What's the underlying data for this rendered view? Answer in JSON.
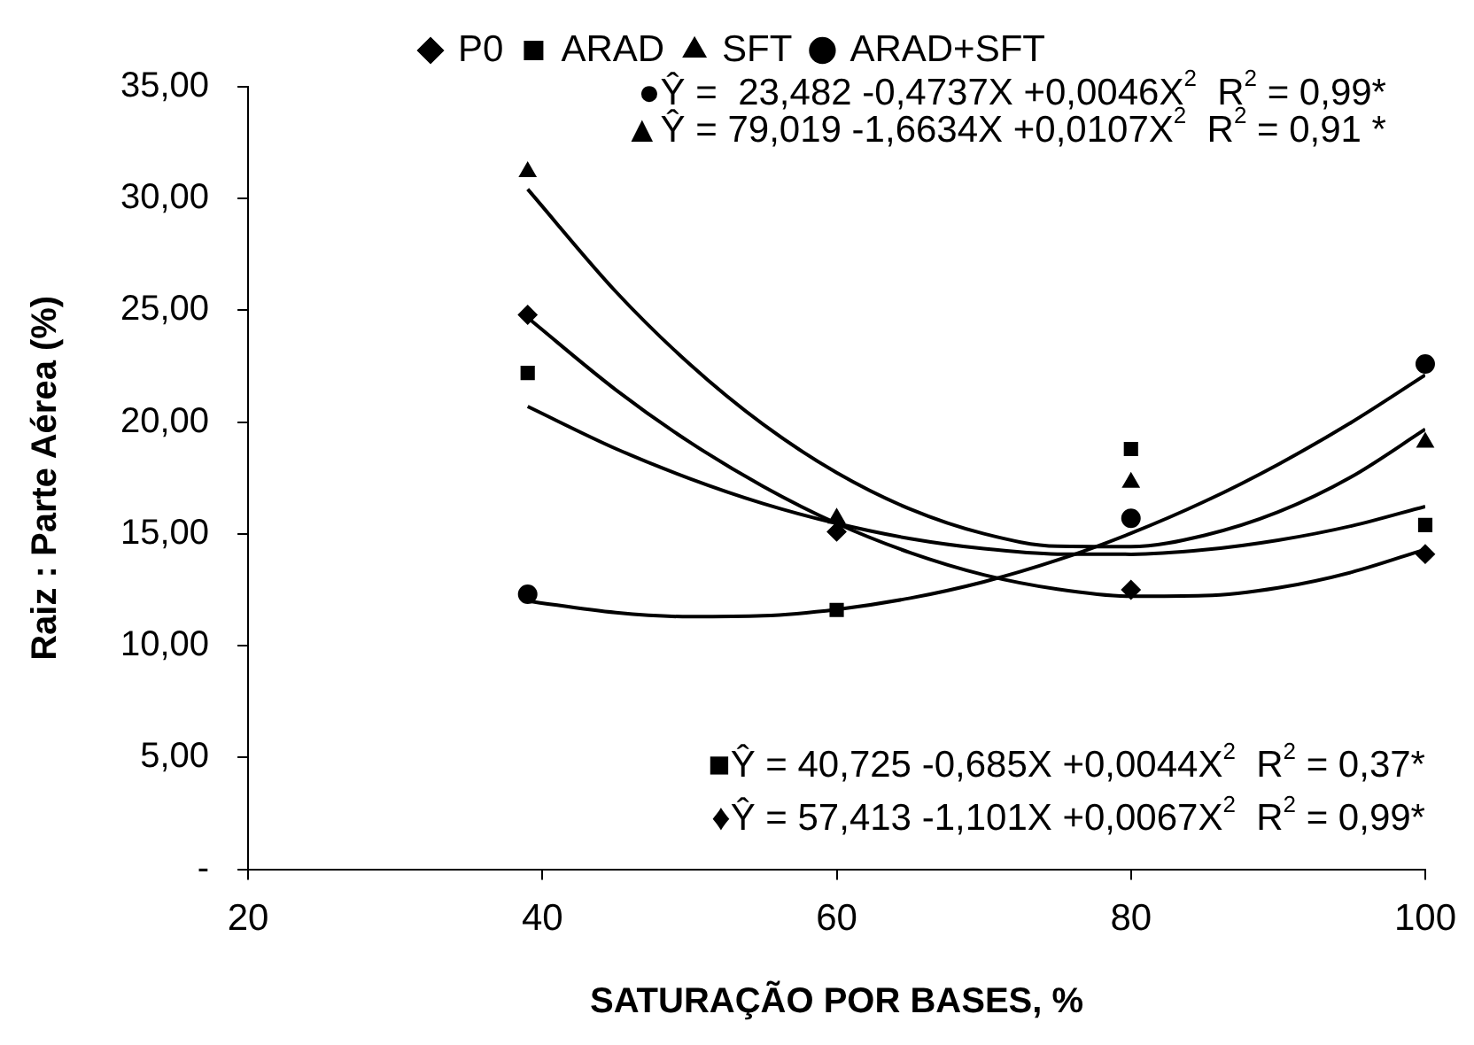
{
  "chart_data": {
    "type": "scatter",
    "xlabel": "SATURAÇÃO POR BASES, %",
    "ylabel": "Raiz : Parte Aérea (%)",
    "xlim": [
      20,
      100
    ],
    "xticks": [
      20,
      40,
      60,
      80,
      100
    ],
    "ylim": [
      0,
      35
    ],
    "yticks": [
      {
        "value": 0,
        "label": "-"
      },
      {
        "value": 5,
        "label": "5,00"
      },
      {
        "value": 10,
        "label": "10,00"
      },
      {
        "value": 15,
        "label": "15,00"
      },
      {
        "value": 20,
        "label": "20,00"
      },
      {
        "value": 25,
        "label": "25,00"
      },
      {
        "value": 30,
        "label": "30,00"
      },
      {
        "value": 35,
        "label": "35,00"
      }
    ],
    "grid": false,
    "legend": "top",
    "series": [
      {
        "name": "P0",
        "marker": "diamond",
        "color": "#000000",
        "x": [
          39,
          60,
          80,
          100
        ],
        "values": [
          24.8,
          15.1,
          12.5,
          14.1
        ]
      },
      {
        "name": "ARAD",
        "marker": "square",
        "color": "#000000",
        "x": [
          39,
          60,
          80,
          100
        ],
        "values": [
          22.2,
          11.6,
          18.8,
          15.4
        ]
      },
      {
        "name": "SFT",
        "marker": "triangle",
        "color": "#000000",
        "x": [
          39,
          60,
          80,
          100
        ],
        "values": [
          31.2,
          15.7,
          17.3,
          19.1
        ]
      },
      {
        "name": "ARAD+SFT",
        "marker": "circle",
        "color": "#000000",
        "x": [
          39,
          60,
          80,
          100
        ],
        "values": [
          12.3,
          null,
          15.7,
          22.6
        ]
      },
      {
        "type": "line",
        "marker": "none",
        "color": "#000000",
        "x": [
          39,
          45,
          50,
          55,
          60,
          65,
          70,
          75,
          80,
          85,
          90,
          95,
          100
        ],
        "values": [
          24.67,
          21.44,
          19.11,
          17.13,
          15.47,
          14.16,
          13.17,
          12.53,
          12.21,
          12.24,
          12.59,
          13.29,
          14.31
        ]
      },
      {
        "type": "line",
        "marker": "none",
        "color": "#000000",
        "x": [
          39,
          45,
          50,
          55,
          60,
          65,
          70,
          75,
          80,
          85,
          90,
          95,
          100
        ],
        "values": [
          20.7,
          18.81,
          17.48,
          16.36,
          15.47,
          14.79,
          14.34,
          14.1,
          14.09,
          14.29,
          14.72,
          15.36,
          16.23
        ]
      },
      {
        "type": "line",
        "marker": "none",
        "color": "#000000",
        "x": [
          39,
          45,
          50,
          55,
          60,
          65,
          70,
          75,
          80,
          85,
          90,
          95,
          100
        ],
        "values": [
          30.42,
          25.83,
          22.6,
          19.9,
          17.74,
          16.11,
          15.01,
          14.45,
          14.43,
          14.94,
          15.98,
          17.56,
          19.68
        ]
      },
      {
        "type": "line",
        "marker": "none",
        "color": "#000000",
        "x": [
          39,
          45,
          50,
          55,
          60,
          65,
          70,
          75,
          80,
          85,
          90,
          95,
          100
        ],
        "values": [
          12.0,
          11.48,
          11.3,
          11.34,
          11.62,
          12.13,
          12.86,
          13.83,
          15.03,
          16.45,
          18.11,
          20.0,
          22.11
        ]
      }
    ],
    "annotations": [
      "●Ŷ =  23,482 -0,4737X +0,0046X$^{2}$  R$^{2}$ = 0,99*",
      "▲Ŷ = 79,019 -1,6634X +0,0107X$^{2}$  R$^{2}$ = 0,91 *",
      "■Ŷ = 40,725 -0,685X +0,0044X$^{2}$  R$^{2}$ = 0,37*",
      "♦Ŷ = 57,413 -1,101X +0,0067X$^{2}$  R$^{2}$ = 0,99*"
    ]
  }
}
